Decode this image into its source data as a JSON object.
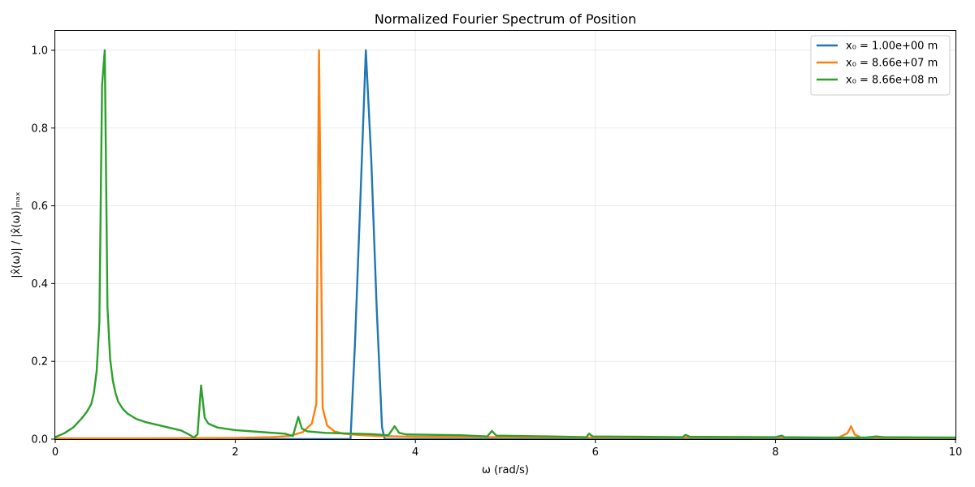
{
  "chart_data": {
    "type": "line",
    "title": "Normalized Fourier Spectrum of Position",
    "xlabel": "ω (rad/s)",
    "ylabel": "|x̂(ω)| / |x̂(ω)|ₘₐₓ",
    "xlim": [
      0,
      10
    ],
    "ylim": [
      0,
      1.05
    ],
    "xticks": [
      0,
      2,
      4,
      6,
      8,
      10
    ],
    "xtick_labels": [
      "0",
      "2",
      "4",
      "6",
      "8",
      "10"
    ],
    "yticks": [
      0.0,
      0.2,
      0.4,
      0.6,
      0.8,
      1.0
    ],
    "ytick_labels": [
      "0.0",
      "0.2",
      "0.4",
      "0.6",
      "0.8",
      "1.0"
    ],
    "grid": true,
    "legend_position": "top-right",
    "series": [
      {
        "name": "x₀ = 1.00e+00 m",
        "color": "#1f77b4",
        "x": [
          0,
          3.28,
          3.33,
          3.39,
          3.45,
          3.51,
          3.57,
          3.63,
          3.66,
          10
        ],
        "y": [
          0,
          0,
          0.25,
          0.62,
          1.0,
          0.72,
          0.34,
          0.03,
          0,
          0
        ]
      },
      {
        "name": "x₀ = 8.66e+07 m",
        "color": "#ff7f0e",
        "x": [
          0,
          1.0,
          2.0,
          2.4,
          2.6,
          2.75,
          2.85,
          2.9,
          2.93,
          2.97,
          3.02,
          3.1,
          3.2,
          3.4,
          3.6,
          4.0,
          5.0,
          6.0,
          7.0,
          8.0,
          8.7,
          8.8,
          8.84,
          8.88,
          8.95,
          9.5,
          10
        ],
        "y": [
          0.002,
          0.002,
          0.003,
          0.005,
          0.008,
          0.018,
          0.04,
          0.09,
          1.0,
          0.08,
          0.035,
          0.02,
          0.014,
          0.01,
          0.008,
          0.006,
          0.005,
          0.004,
          0.004,
          0.004,
          0.004,
          0.015,
          0.033,
          0.012,
          0.004,
          0.003,
          0.003
        ]
      },
      {
        "name": "x₀ = 8.66e+08 m",
        "color": "#2ca02c",
        "x": [
          0,
          0.1,
          0.2,
          0.3,
          0.35,
          0.4,
          0.43,
          0.46,
          0.49,
          0.52,
          0.55,
          0.58,
          0.61,
          0.64,
          0.67,
          0.7,
          0.75,
          0.8,
          0.9,
          1.0,
          1.2,
          1.4,
          1.5,
          1.54,
          1.58,
          1.62,
          1.66,
          1.7,
          1.8,
          2.0,
          2.3,
          2.55,
          2.64,
          2.7,
          2.74,
          2.8,
          3.0,
          3.5,
          3.7,
          3.77,
          3.82,
          3.9,
          4.5,
          4.8,
          4.85,
          4.9,
          5.5,
          5.9,
          5.93,
          5.97,
          6.5,
          6.97,
          7.0,
          7.05,
          8.0,
          8.07,
          8.1,
          8.5,
          9.0,
          9.12,
          9.2,
          10
        ],
        "y": [
          0.005,
          0.015,
          0.03,
          0.055,
          0.07,
          0.09,
          0.12,
          0.175,
          0.3,
          0.91,
          1.0,
          0.34,
          0.205,
          0.15,
          0.118,
          0.096,
          0.078,
          0.066,
          0.052,
          0.044,
          0.033,
          0.022,
          0.01,
          0.004,
          0.012,
          0.138,
          0.055,
          0.04,
          0.03,
          0.023,
          0.018,
          0.014,
          0.008,
          0.057,
          0.027,
          0.02,
          0.016,
          0.013,
          0.01,
          0.033,
          0.016,
          0.012,
          0.01,
          0.007,
          0.021,
          0.009,
          0.007,
          0.005,
          0.014,
          0.007,
          0.006,
          0.005,
          0.011,
          0.006,
          0.005,
          0.009,
          0.005,
          0.004,
          0.004,
          0.007,
          0.005,
          0.004
        ]
      }
    ]
  }
}
